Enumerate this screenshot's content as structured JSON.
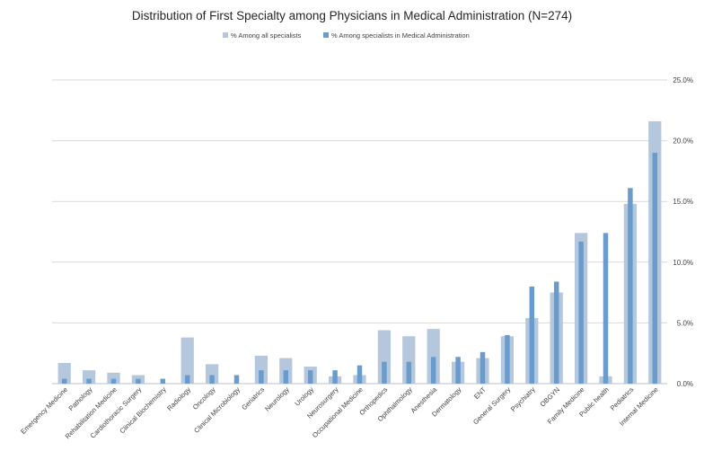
{
  "chart_data": {
    "type": "bar",
    "title": "Distribution of First Specialty among Physicians in Medical Administration (N=274)",
    "xlabel": "",
    "ylabel": "",
    "ylim": [
      0,
      25
    ],
    "y_ticks": [
      "0.0%",
      "5.0%",
      "10.0%",
      "15.0%",
      "20.0%",
      "25.0%"
    ],
    "y_tick_values": [
      0,
      5,
      10,
      15,
      20,
      25
    ],
    "y_axis_position": "right",
    "grid": true,
    "legend_position": "top",
    "categories": [
      "Emergency Medicine",
      "Pathology",
      "Rehabilitation Medicine",
      "Cardiothoracic Surgery",
      "Clinical Biochemistry",
      "Radiology",
      "Oncology",
      "Clinical Microbiology",
      "Geriatrics",
      "Neurology",
      "Urology",
      "Neurosurgery",
      "Occupational Medicine",
      "Orthopedics",
      "Ophthalmology",
      "Anesthesia",
      "Dermatology",
      "ENT",
      "General Surgery",
      "Psychiatry",
      "OBGYN",
      "Family Medicine",
      "Public health",
      "Pediatrics",
      "Internal Medicine"
    ],
    "series": [
      {
        "name": "% Among all specialists",
        "color": "#b4c7dc",
        "values": [
          1.7,
          1.1,
          0.9,
          0.7,
          0.0,
          3.8,
          1.6,
          0.0,
          2.3,
          2.1,
          1.4,
          0.6,
          0.7,
          4.4,
          3.9,
          4.5,
          1.8,
          2.1,
          3.9,
          5.4,
          7.5,
          12.4,
          0.6,
          14.8,
          21.6
        ]
      },
      {
        "name": "% Among specialists in Medical Administration",
        "color": "#6a9bcd",
        "values": [
          0.4,
          0.4,
          0.4,
          0.4,
          0.4,
          0.7,
          0.7,
          0.7,
          1.1,
          1.1,
          1.1,
          1.1,
          1.5,
          1.8,
          1.8,
          2.2,
          2.2,
          2.6,
          4.0,
          8.0,
          8.4,
          11.7,
          12.4,
          16.1,
          19.0
        ]
      }
    ]
  }
}
